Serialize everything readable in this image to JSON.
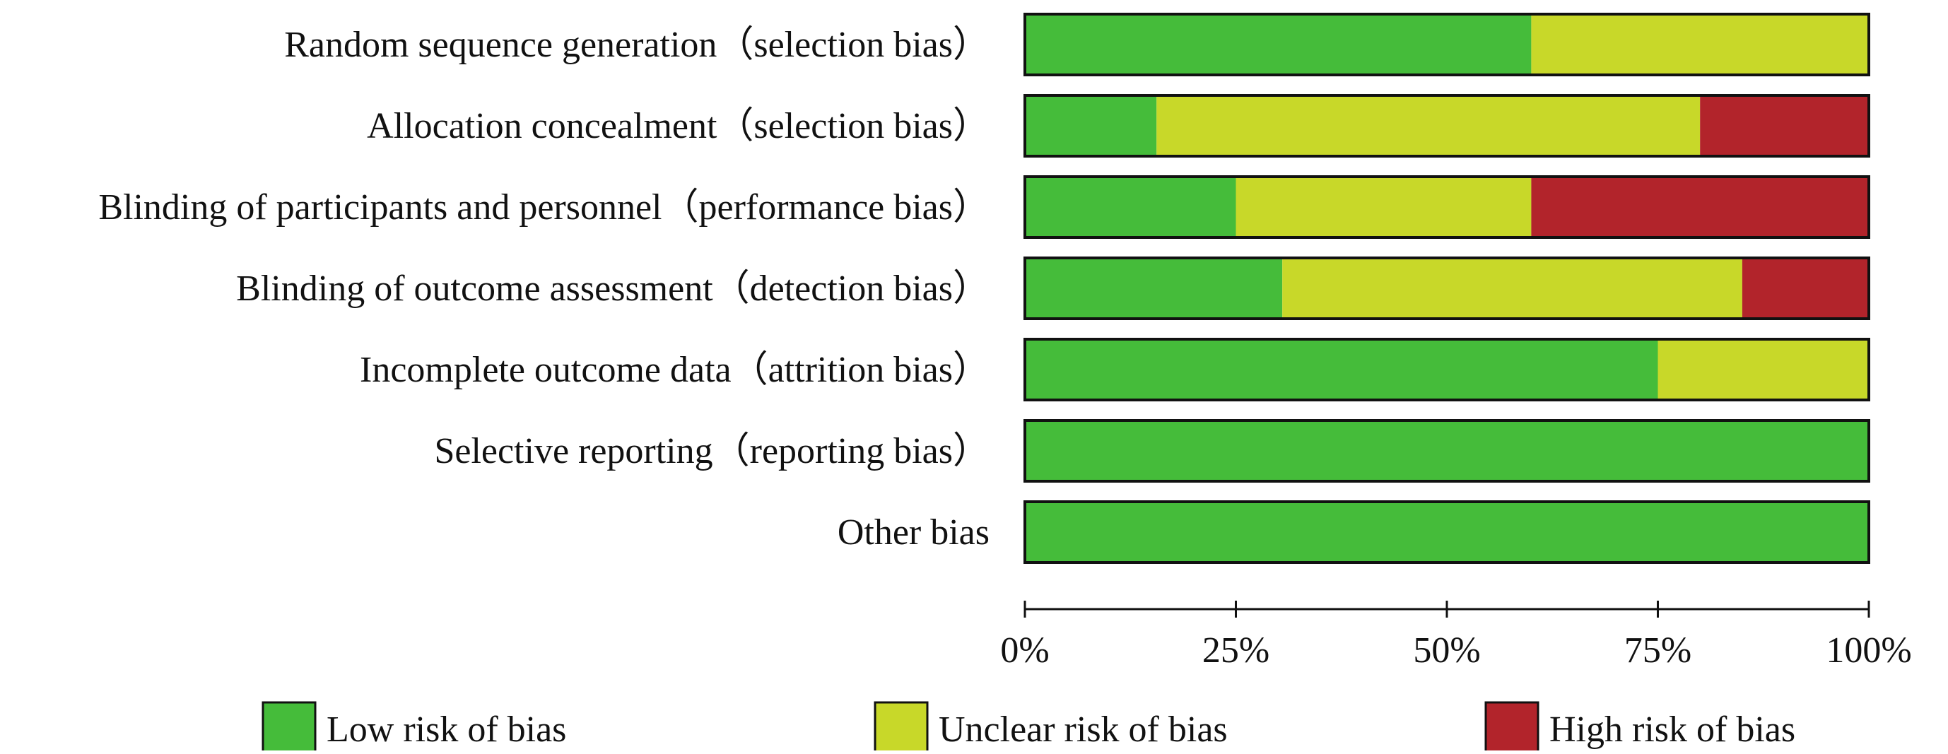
{
  "chart_data": {
    "type": "bar",
    "orientation": "horizontal",
    "stacked": true,
    "categories": [
      "Random sequence generation（selection bias）",
      "Allocation concealment（selection bias）",
      "Blinding of participants and personnel（performance bias）",
      "Blinding of outcome assessment（detection bias）",
      "Incomplete outcome data（attrition bias）",
      "Selective reporting（reporting bias）",
      "Other bias"
    ],
    "series": [
      {
        "name": "Low risk of bias",
        "color": "#45BC3A",
        "values": [
          60,
          15.6,
          25,
          30.5,
          75,
          100,
          100
        ]
      },
      {
        "name": "Unclear risk of bias",
        "color": "#C8D829",
        "values": [
          40,
          64.4,
          35,
          54.5,
          25,
          0,
          0
        ]
      },
      {
        "name": "High risk of bias",
        "color": "#B2242B",
        "values": [
          0,
          20,
          40,
          15,
          0,
          0,
          0
        ]
      }
    ],
    "xlim": [
      0,
      100
    ],
    "x_ticks": [
      "0%",
      "25%",
      "50%",
      "75%",
      "100%"
    ],
    "legend_position": "bottom",
    "grid": false,
    "title": "",
    "xlabel": "",
    "ylabel": ""
  }
}
